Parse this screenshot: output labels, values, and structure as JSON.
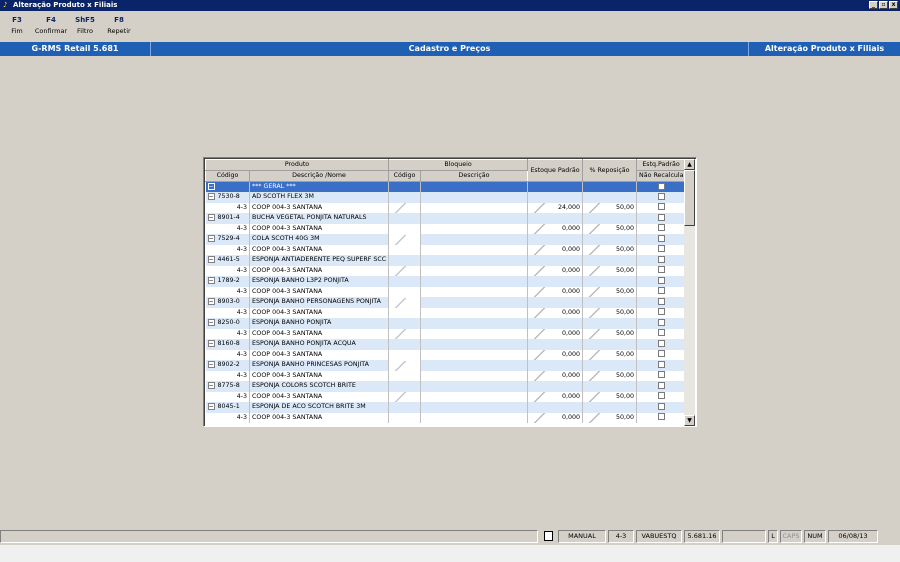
{
  "window": {
    "title": "Alteração Produto x Filiais",
    "min": "_",
    "max": "▫",
    "close": "x"
  },
  "fkeys": [
    {
      "key": "F3",
      "label": "Fim"
    },
    {
      "key": "F4",
      "label": "Confirmar"
    },
    {
      "key": "ShF5",
      "label": "Filtro"
    },
    {
      "key": "F8",
      "label": "Repetir"
    }
  ],
  "band": {
    "left": "G-RMS Retail 5.681",
    "center": "Cadastro e Preços",
    "right": "Alteração Produto x Filiais"
  },
  "grid": {
    "group_produto": "Produto",
    "group_bloqueio": "Bloqueio",
    "col_codigo": "Código",
    "col_descricao_nome": "Descrição /Nome",
    "col_b_codigo": "Código",
    "col_b_descricao": "Descrição",
    "col_estoque": "Estoque Padrão",
    "col_reposicao": "% Reposição",
    "col_estq_top": "Estq.Padrão",
    "col_estq_bottom": "Não Recalcula",
    "geral_label": "*** GERAL ***",
    "rows": [
      {
        "kind": "prod",
        "code": "7530-8",
        "desc": "AD SCOTH FLEX 3M"
      },
      {
        "kind": "fil",
        "code": "4-3",
        "desc": "COOP 004-3  SANTANA",
        "estoque": "24,000",
        "repos": "50,00"
      },
      {
        "kind": "prod",
        "code": "8901-4",
        "desc": "BUCHA VEGETAL PONJITA NATURALS"
      },
      {
        "kind": "fil",
        "code": "4-3",
        "desc": "COOP 004-3  SANTANA",
        "estoque": "0,000",
        "repos": "50,00"
      },
      {
        "kind": "prod",
        "code": "7529-4",
        "desc": "COLA SCOTH 40G 3M"
      },
      {
        "kind": "fil",
        "code": "4-3",
        "desc": "COOP 004-3  SANTANA",
        "estoque": "0,000",
        "repos": "50,00"
      },
      {
        "kind": "prod",
        "code": "4461-5",
        "desc": "ESPONJA ANTIADERENTE PEQ SUPERF SCC"
      },
      {
        "kind": "fil",
        "code": "4-3",
        "desc": "COOP 004-3  SANTANA",
        "estoque": "0,000",
        "repos": "50,00"
      },
      {
        "kind": "prod",
        "code": "1789-2",
        "desc": "ESPONJA BANHO L3P2 PONJITA"
      },
      {
        "kind": "fil",
        "code": "4-3",
        "desc": "COOP 004-3  SANTANA",
        "estoque": "0,000",
        "repos": "50,00"
      },
      {
        "kind": "prod",
        "code": "8903-0",
        "desc": "ESPONJA BANHO PERSONAGENS PONJITA"
      },
      {
        "kind": "fil",
        "code": "4-3",
        "desc": "COOP 004-3  SANTANA",
        "estoque": "0,000",
        "repos": "50,00"
      },
      {
        "kind": "prod",
        "code": "8250-0",
        "desc": "ESPONJA BANHO PONJITA"
      },
      {
        "kind": "fil",
        "code": "4-3",
        "desc": "COOP 004-3  SANTANA",
        "estoque": "0,000",
        "repos": "50,00"
      },
      {
        "kind": "prod",
        "code": "8160-8",
        "desc": "ESPONJA BANHO PONJITA ACQUA"
      },
      {
        "kind": "fil",
        "code": "4-3",
        "desc": "COOP 004-3  SANTANA",
        "estoque": "0,000",
        "repos": "50,00"
      },
      {
        "kind": "prod",
        "code": "8902-2",
        "desc": "ESPONJA BANHO PRINCESAS PONJITA"
      },
      {
        "kind": "fil",
        "code": "4-3",
        "desc": "COOP 004-3  SANTANA",
        "estoque": "0,000",
        "repos": "50,00"
      },
      {
        "kind": "prod",
        "code": "8775-8",
        "desc": "ESPONJA COLORS SCOTCH BRITE"
      },
      {
        "kind": "fil",
        "code": "4-3",
        "desc": "COOP 004-3  SANTANA",
        "estoque": "0,000",
        "repos": "50,00"
      },
      {
        "kind": "prod",
        "code": "8045-1",
        "desc": "ESPONJA DE ACO SCOTCH BRITE 3M"
      },
      {
        "kind": "fil",
        "code": "4-3",
        "desc": "COOP 004-3  SANTANA",
        "estoque": "0,000",
        "repos": "50,00"
      }
    ]
  },
  "status": {
    "mode": "MANUAL",
    "filial": "4-3",
    "program": "VABUESTQ",
    "version": "5.681.16",
    "l": "L",
    "caps": "CAPS",
    "num": "NUM",
    "date": "06/08/13"
  },
  "colors": {
    "titlebar": "#0a246a",
    "band": "#1f5fb4",
    "row_blue": "#dbe8f7",
    "selected": "#3a6fc8"
  }
}
